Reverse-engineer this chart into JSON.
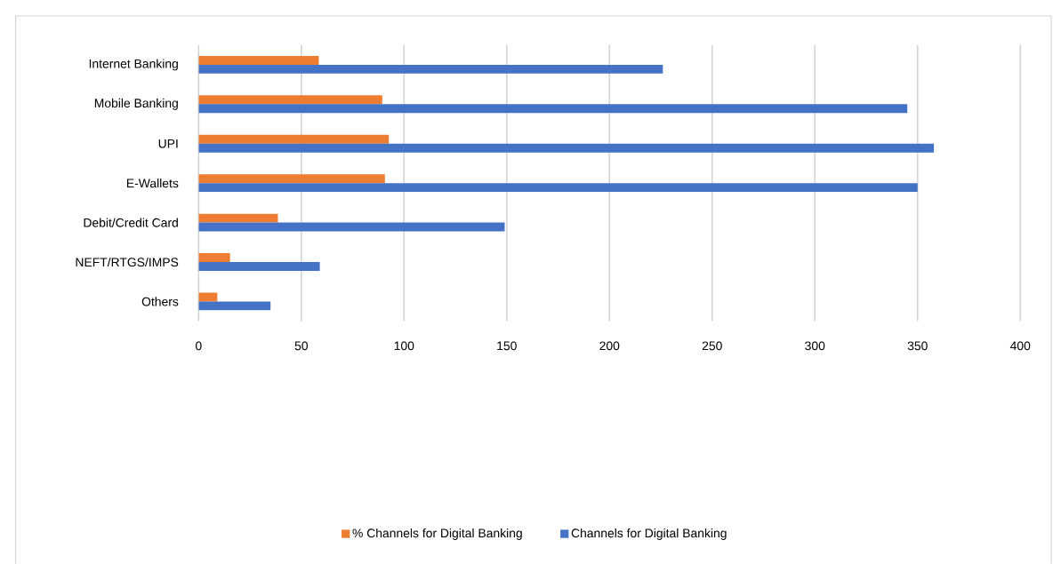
{
  "chart_data": {
    "type": "bar",
    "orientation": "horizontal",
    "categories": [
      "Internet Banking",
      "Mobile Banking",
      "UPI",
      "E-Wallets",
      "Debit/Credit Card",
      "NEFT/RTGS/IMPS",
      "Others"
    ],
    "series": [
      {
        "name": "% Channels for Digital Banking",
        "color": "#ed7d31",
        "values": [
          58.5,
          89.4,
          92.7,
          90.7,
          38.6,
          15.3,
          9.1
        ]
      },
      {
        "name": "Channels for Digital Banking",
        "color": "#4472c4",
        "values": [
          226,
          345,
          358,
          350,
          149,
          59,
          35
        ]
      }
    ],
    "xlim": [
      0,
      400
    ],
    "xticks": [
      0,
      50,
      100,
      150,
      200,
      250,
      300,
      350,
      400
    ],
    "grid": "x",
    "legend": "bottom"
  }
}
